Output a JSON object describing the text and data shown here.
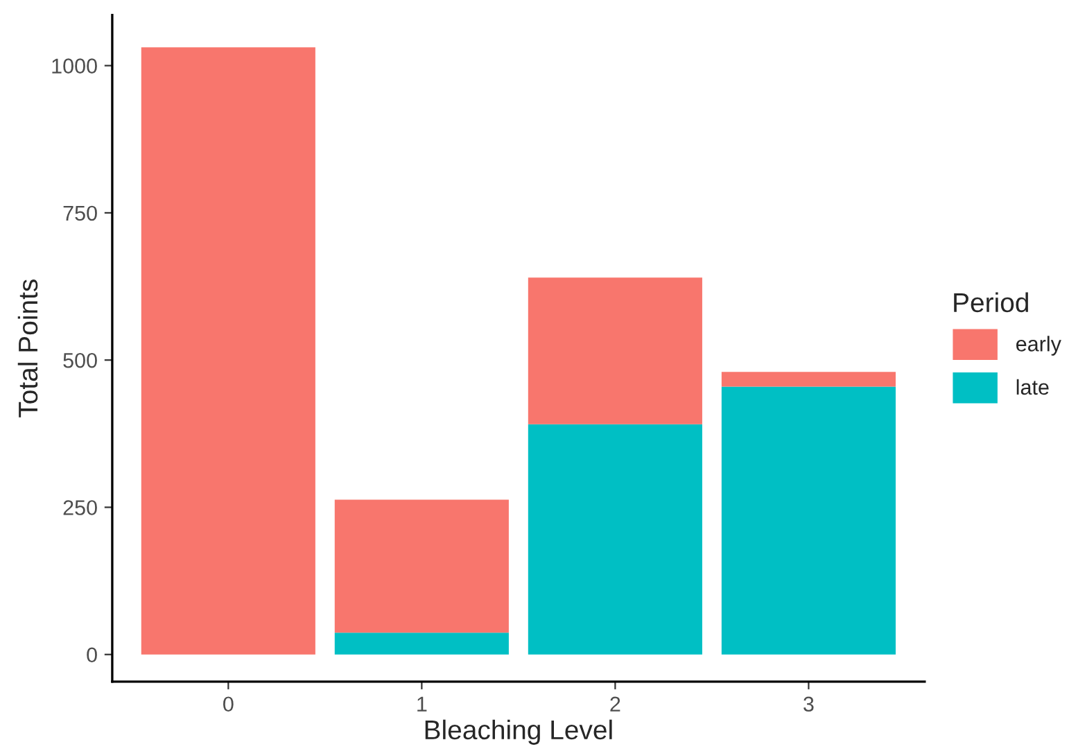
{
  "chart_data": {
    "type": "bar",
    "xlabel": "Bleaching Level",
    "ylabel": "Total Points",
    "legend_title": "Period",
    "categories": [
      "0",
      "1",
      "2",
      "3"
    ],
    "stacked": true,
    "series": [
      {
        "name": "late",
        "color": "#00bfc4",
        "values": [
          0,
          37,
          391,
          455
        ]
      },
      {
        "name": "early",
        "color": "#f8766d",
        "values": [
          1031,
          226,
          249,
          25
        ]
      }
    ],
    "ylim": [
      -46,
      1086
    ],
    "yticks": [
      0,
      250,
      500,
      750,
      1000
    ],
    "grid": false,
    "legend": "right"
  }
}
